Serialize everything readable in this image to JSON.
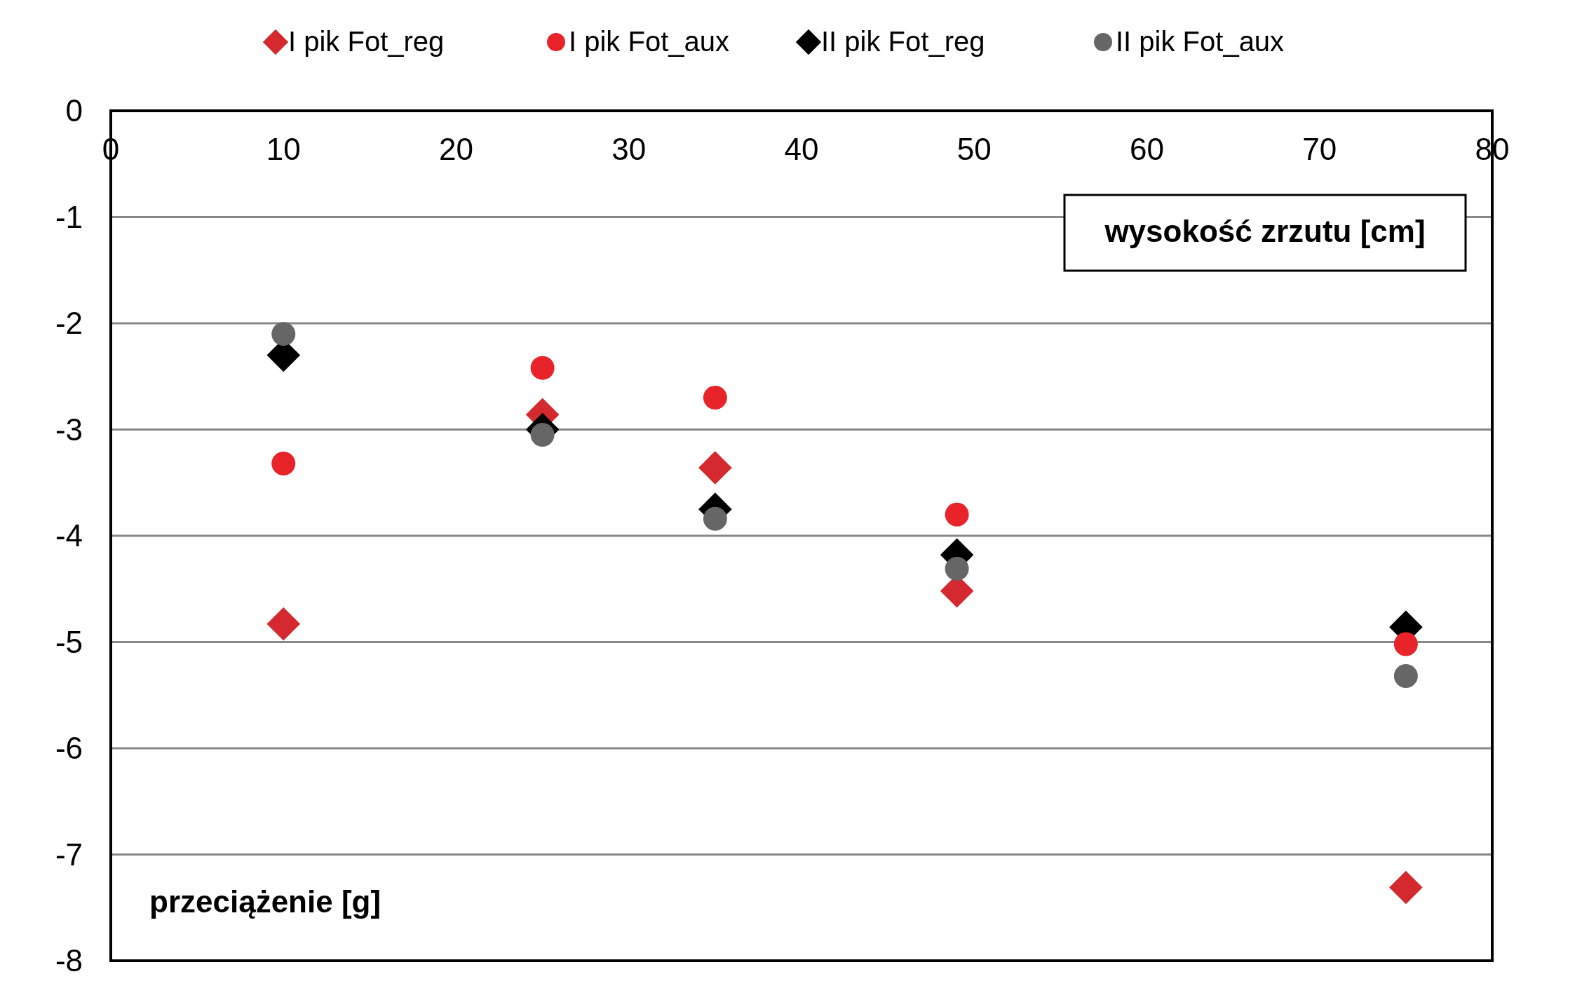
{
  "chart_data": {
    "type": "scatter",
    "xlabel": "wysokość zrzutu [cm]",
    "ylabel": "przeciążenie [g]",
    "x": [
      10,
      25,
      35,
      49,
      75
    ],
    "series": [
      {
        "name": "I pik Fot_reg",
        "color": "#d42a2f",
        "marker": "diamond",
        "values": [
          -4.83,
          -2.86,
          -3.36,
          -4.52,
          -7.31
        ]
      },
      {
        "name": "I pik Fot_aux",
        "color": "#e8242a",
        "marker": "circle",
        "values": [
          -3.32,
          -2.42,
          -2.7,
          -3.8,
          -5.02
        ]
      },
      {
        "name": "II pik Fot_reg",
        "color": "#000000",
        "marker": "diamond",
        "values": [
          -2.3,
          -3.0,
          -3.75,
          -4.18,
          -4.86
        ]
      },
      {
        "name": "II pik Fot_aux",
        "color": "#666666",
        "marker": "circle",
        "values": [
          -2.1,
          -3.05,
          -3.84,
          -4.31,
          -5.32
        ]
      }
    ],
    "xlim": [
      0,
      80
    ],
    "xticks": [
      0,
      10,
      20,
      30,
      40,
      50,
      60,
      70,
      80
    ],
    "ylim": [
      -8,
      0
    ],
    "yticks": [
      -8,
      -7,
      -6,
      -5,
      -4,
      -3,
      -2,
      -1,
      0
    ],
    "grid": "y",
    "legend": "top"
  }
}
